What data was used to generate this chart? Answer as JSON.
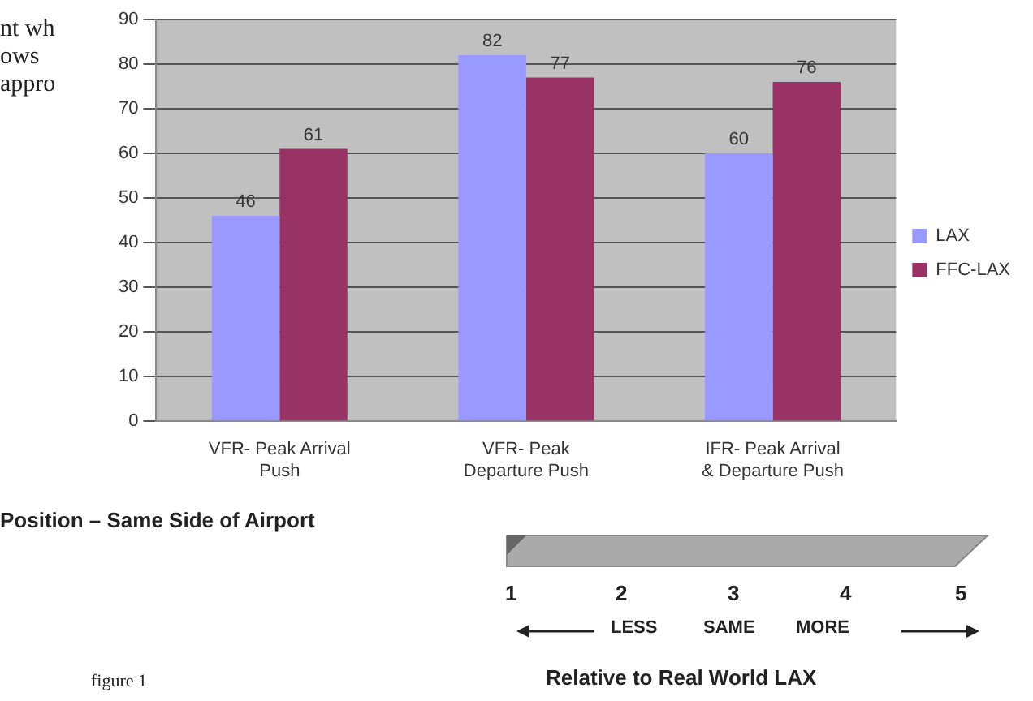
{
  "chart_data": {
    "type": "bar",
    "categories": [
      "VFR- Peak Arrival Push",
      "VFR- Peak Departure Push",
      "IFR- Peak Arrival & Departure Push"
    ],
    "series": [
      {
        "name": "LAX",
        "color": "#9999ff",
        "values": [
          46,
          82,
          60
        ]
      },
      {
        "name": "FFC-LAX",
        "color": "#993366",
        "values": [
          61,
          77,
          76
        ]
      }
    ],
    "ylim": [
      0,
      90
    ],
    "yticks": [
      0,
      10,
      20,
      30,
      40,
      50,
      60,
      70,
      80,
      90
    ],
    "grid": "y",
    "legend": "right",
    "data_labels": true,
    "annotations": [
      "nt wh",
      "ows",
      "appro",
      "Position – Same Side of Airport",
      "1",
      "2",
      "3",
      "4",
      "5",
      "LESS",
      "SAME",
      "MORE",
      "Relative to Real World LAX",
      "figure 1"
    ]
  }
}
